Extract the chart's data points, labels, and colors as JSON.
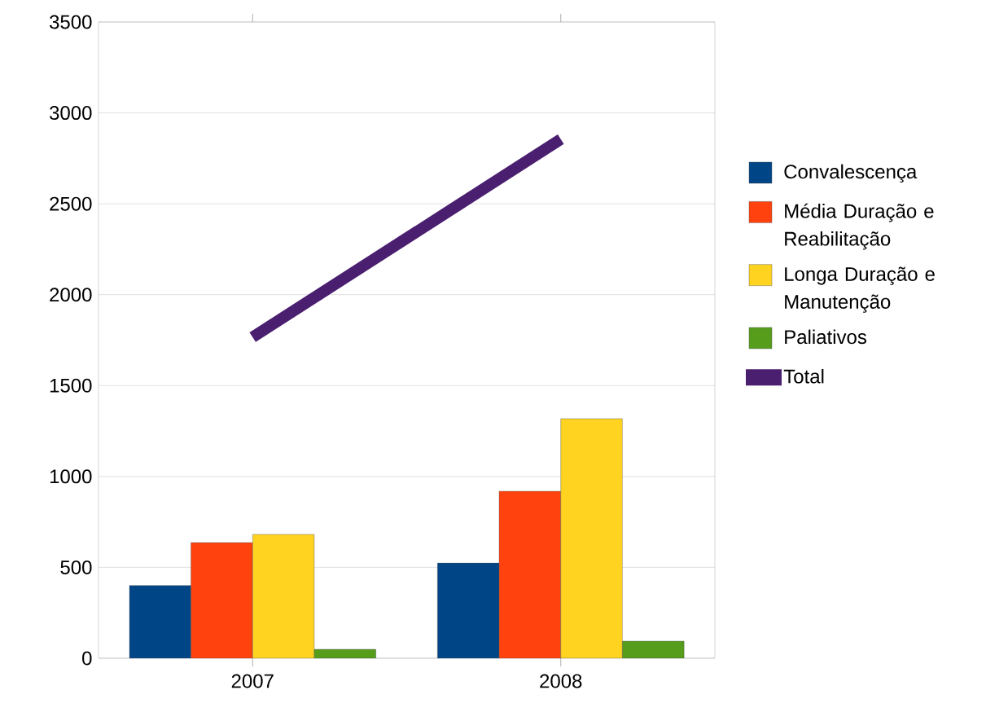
{
  "chart_data": {
    "type": "bar",
    "categories": [
      "2007",
      "2008"
    ],
    "series": [
      {
        "name": "Convalescença",
        "color": "#004586",
        "values": [
          400,
          524
        ]
      },
      {
        "name": "Média Duração e Reabilitação",
        "color": "#ff420e",
        "values": [
          636,
          919
        ]
      },
      {
        "name": "Longa Duração e Manutenção",
        "color": "#ffd320",
        "values": [
          681,
          1318
        ]
      },
      {
        "name": "Paliativos",
        "color": "#579d1c",
        "values": [
          49,
          94
        ]
      },
      {
        "name": "Total",
        "type": "line",
        "color": "#4b1f6f",
        "values": [
          1766,
          2855
        ]
      }
    ],
    "ylim": [
      0,
      3500
    ],
    "yticks": [
      0,
      500,
      1000,
      1500,
      2000,
      2500,
      3000,
      3500
    ],
    "grid": "y",
    "legend": "right"
  }
}
